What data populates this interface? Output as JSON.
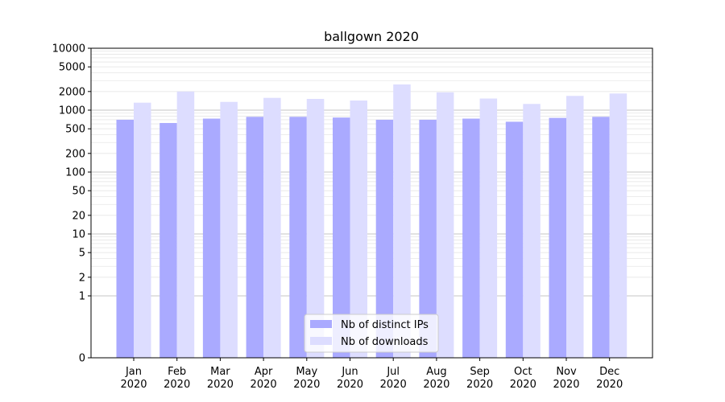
{
  "chart_data": {
    "type": "bar",
    "title": "ballgown 2020",
    "xlabel": "",
    "ylabel": "",
    "y_scale": "symlog",
    "ylim": [
      0,
      10000
    ],
    "y_ticks": [
      0,
      1,
      2,
      5,
      10,
      20,
      50,
      100,
      200,
      500,
      1000,
      2000,
      5000,
      10000
    ],
    "grid": true,
    "legend_position": "bottom-center",
    "categories": [
      "Jan\n2020",
      "Feb\n2020",
      "Mar\n2020",
      "Apr\n2020",
      "May\n2020",
      "Jun\n2020",
      "Jul\n2020",
      "Aug\n2020",
      "Sep\n2020",
      "Oct\n2020",
      "Nov\n2020",
      "Dec\n2020"
    ],
    "series": [
      {
        "name": "Nb of distinct IPs",
        "color": "#aaaaff",
        "values": [
          700,
          620,
          730,
          780,
          780,
          760,
          700,
          700,
          730,
          650,
          750,
          780
        ]
      },
      {
        "name": "Nb of downloads",
        "color": "#ddddff",
        "values": [
          1320,
          2000,
          1360,
          1580,
          1520,
          1430,
          2600,
          1940,
          1540,
          1260,
          1700,
          1860
        ]
      }
    ]
  }
}
